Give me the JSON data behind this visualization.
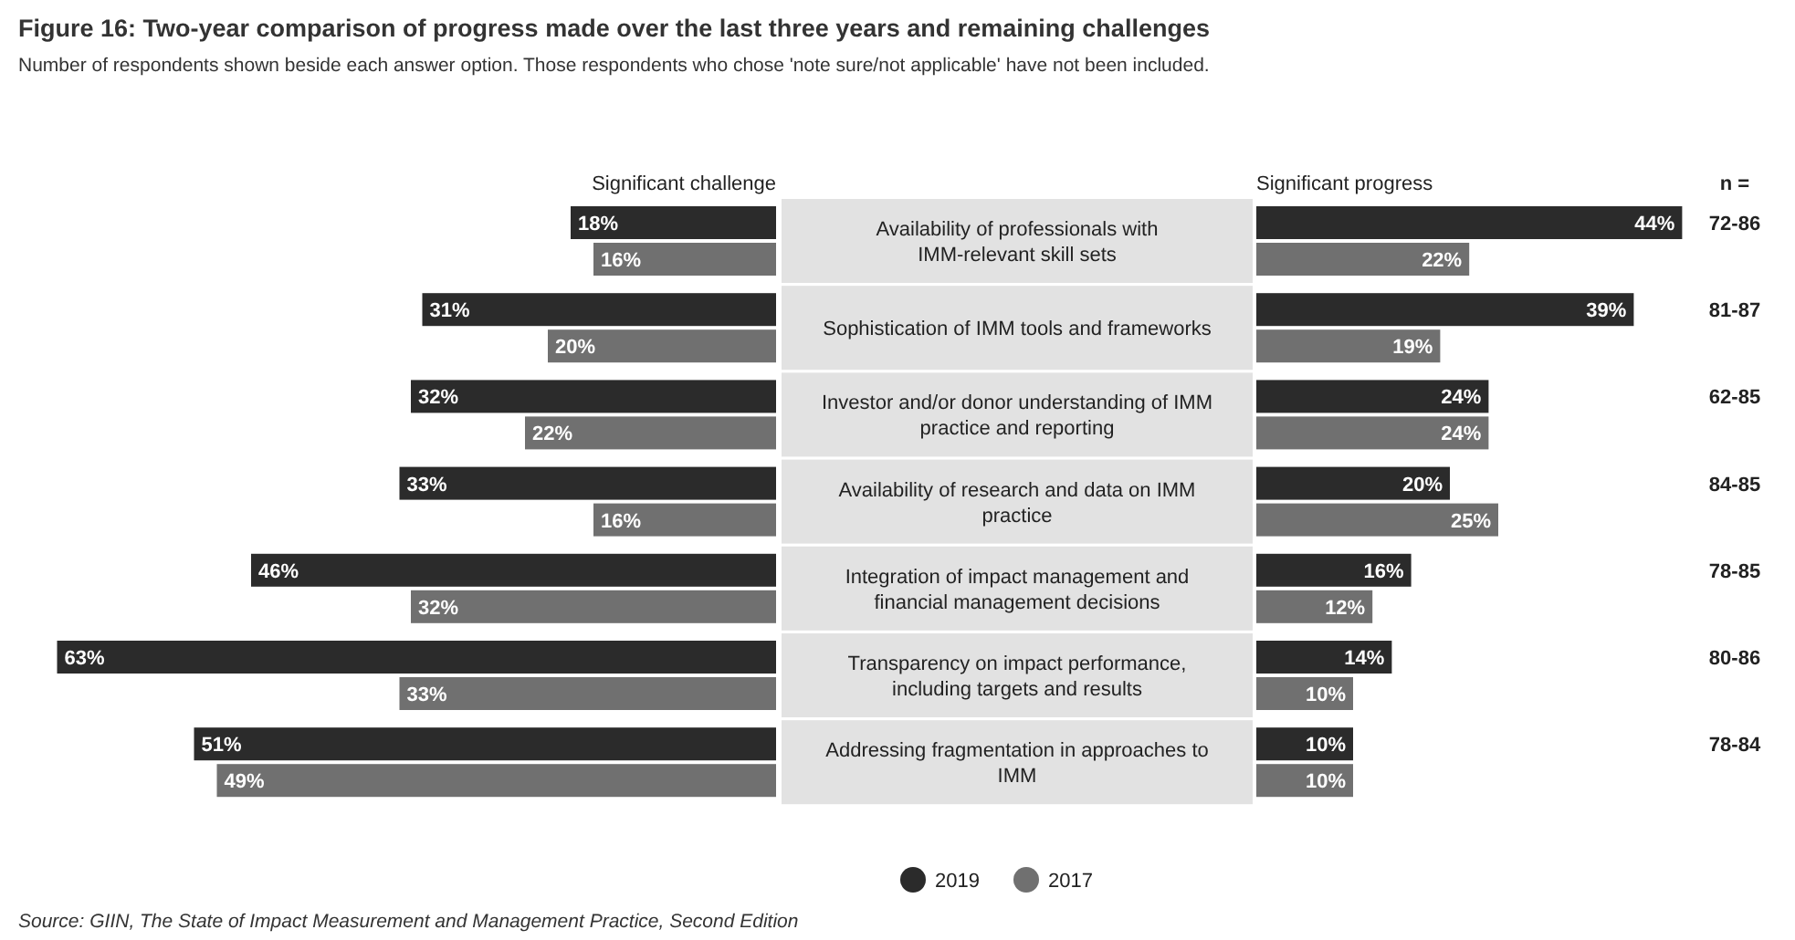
{
  "chart_data": [
    {
      "type": "bar",
      "orientation": "horizontal",
      "title": "Figure 16: Two-year comparison of progress made over the last three years and remaining challenges",
      "subtitle": "Number of respondents shown beside each answer option. Those respondents who chose 'note sure/not applicable' have not been included.",
      "xlabel": "Significant challenge",
      "categories": [
        "Availability of professionals with IMM-relevant skill sets",
        "Sophistication of IMM tools and frameworks",
        "Investor and/or donor understanding of IMM practice and reporting",
        "Availability of research and data on IMM practice",
        "Integration of impact management and financial management decisions",
        "Transparency on impact performance, including targets and results",
        "Addressing fragmentation in approaches to IMM"
      ],
      "series": [
        {
          "name": "2019",
          "color": "#2b2b2b",
          "values": [
            18,
            31,
            32,
            33,
            46,
            63,
            51
          ],
          "value_labels": [
            "18%",
            "31%",
            "32%",
            "33%",
            "46%",
            "63%",
            "51%"
          ]
        },
        {
          "name": "2017",
          "color": "#707070",
          "values": [
            16,
            20,
            22,
            16,
            32,
            33,
            49
          ],
          "value_labels": [
            "16%",
            "20%",
            "22%",
            "16%",
            "32%",
            "33%",
            "49%"
          ]
        }
      ],
      "legend": "bottom",
      "annotations": [
        "Source: GIIN, The State of Impact Measurement and Management Practice, Second Edition"
      ]
    },
    {
      "type": "bar",
      "orientation": "horizontal",
      "xlabel": "Significant progress",
      "y2label": "n =",
      "categories": [
        null,
        null,
        null,
        null,
        null,
        null,
        null
      ],
      "series": [
        {
          "color": "#2b2b2b",
          "values": [
            44,
            39,
            24,
            20,
            16,
            14,
            10
          ],
          "value_labels": [
            "44%",
            "39%",
            "24%",
            "20%",
            "16%",
            "14%",
            "10%"
          ]
        },
        {
          "color": "#707070",
          "values": [
            22,
            19,
            24,
            25,
            12,
            10,
            10
          ],
          "value_labels": [
            "22%",
            "19%",
            "24%",
            "25%",
            "12%",
            "10%",
            "10%"
          ]
        }
      ],
      "annotations": [
        "72-86",
        "81-87",
        "62-85",
        "84-85",
        "78-85",
        "80-86",
        "78-84"
      ]
    }
  ]
}
